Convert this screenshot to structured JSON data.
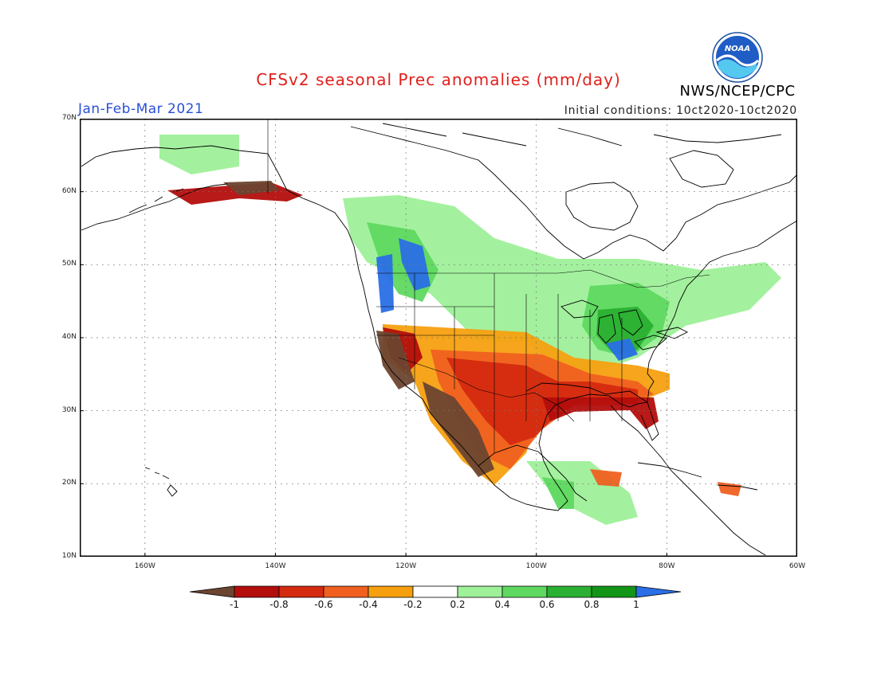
{
  "header": {
    "title": "CFSv2 seasonal Prec anomalies (mm/day)",
    "period": "Jan-Feb-Mar 2021",
    "initial_conditions": "Initial conditions: 10ct2020-10ct2020",
    "agency": "NWS/NCEP/CPC",
    "logo_text": "NOAA"
  },
  "map": {
    "lat_labels": [
      "70N",
      "60N",
      "50N",
      "40N",
      "30N",
      "20N",
      "10N"
    ],
    "lon_labels": [
      "160W",
      "140W",
      "120W",
      "100W",
      "80W",
      "60W"
    ]
  },
  "colorbar": {
    "labels": [
      "-1",
      "-0.8",
      "-0.6",
      "-0.4",
      "-0.2",
      "0.2",
      "0.4",
      "0.6",
      "0.8",
      "1"
    ],
    "colors": [
      "#6b4530",
      "#b30e0c",
      "#d42a10",
      "#f06020",
      "#f6a010",
      "#ffffff",
      "#9ef099",
      "#5fd860",
      "#2ab032",
      "#139618",
      "#2a6fe6"
    ]
  }
}
